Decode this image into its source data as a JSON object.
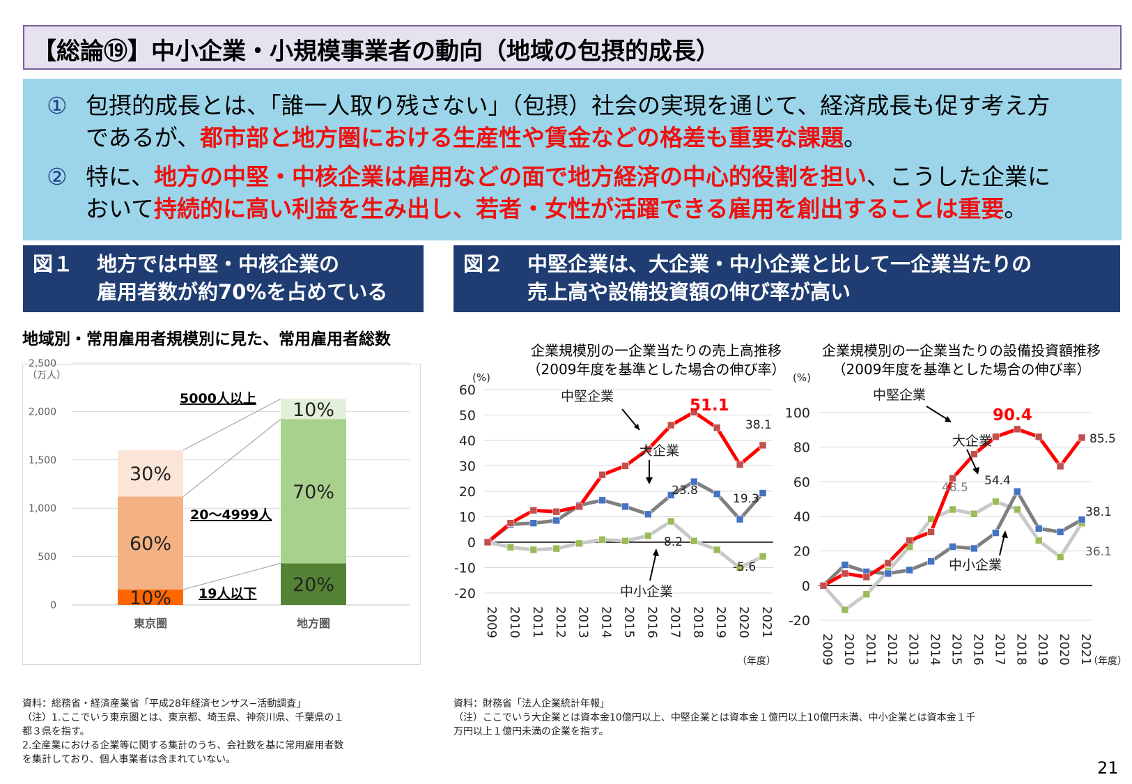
{
  "title": "【総論⑲】中小企業・小規模事業者の動向（地域の包摂的成長）",
  "summary": {
    "p1": {
      "num": "①",
      "a": "包摂的成長とは、「誰一人取り残さない」（包摂）社会の実現を通じて、経済成長も促す考え方",
      "b": "であるが、",
      "red": "都市部と地方圏における生産性や賃金などの格差も重要な課題",
      "c": "。"
    },
    "p2": {
      "num": "②",
      "a": "特に、",
      "red1": "地方の中堅・中核企業は雇用などの面で地方経済の中心的役割を担い",
      "b": "、こうした企業に",
      "c": "おいて",
      "red2": "持続的に高い利益を生み出し、若者・女性が活躍できる雇用を創出することは重要",
      "d": "。"
    }
  },
  "fig1": {
    "label": "図１",
    "line1": "地方では中堅・中核企業の",
    "line2": "雇用者数が約70%を占めている"
  },
  "fig2": {
    "label": "図２",
    "line1": "中堅企業は、大企業・中小企業と比して一企業当たりの",
    "line2": "売上高や設備投資額の伸び率が高い"
  },
  "chart1_title": "地域別・常用雇用者規模別に見た、常用雇用者総数",
  "chart1_unit": "（万人）",
  "chart1_labels": {
    "large": "5000人以上",
    "mid": "20〜4999人",
    "small": "19人以下"
  },
  "chart2a_title1": "企業規模別の一企業当たりの売上高推移",
  "chart2a_title2": "（2009年度を基準とした場合の伸び率）",
  "chart2b_title1": "企業規模別の一企業当たりの設備投資額推移",
  "chart2b_title2": "（2009年度を基準とした場合の伸び率）",
  "percent_unit": "(%)",
  "year_unit": "（年度）",
  "source1": {
    "line1": "資料：総務省・経済産業省「平成28年経済センサス−活動調査」",
    "line2": "（注）1.ここでいう東京圏とは、東京都、埼玉県、神奈川県、千葉県の１",
    "line3": "都３県を指す。",
    "line4": "2.全産業における企業等に関する集計のうち、会社数を基に常用雇用者数",
    "line5": "を集計しており、個人事業者は含まれていない。"
  },
  "source2": {
    "line1": "資料：財務省「法人企業統計年報」",
    "line2": "（注）ここでいう大企業とは資本金10億円以上、中堅企業とは資本金１億円以上10億円未満、中小企業とは資本金１千",
    "line3": "万円以上１億円未満の企業を指す。"
  },
  "page_number": "21",
  "colors": {
    "mid_company": "#ff0000",
    "large_company": "#7f7f7f",
    "small_company": "#c0c0c0"
  },
  "chart_data": [
    {
      "type": "bar",
      "stacked": true,
      "categories": [
        "東京圏",
        "地方圏"
      ],
      "ylim": [
        0,
        2500
      ],
      "yticks": [
        "0",
        "500",
        "1,000",
        "1,500",
        "2,000",
        "2,500"
      ],
      "series": [
        {
          "name": "19人以下",
          "values": [
            160,
            430
          ],
          "labels": [
            "10%",
            "20%"
          ],
          "colors": [
            "#ff6600",
            "#548235"
          ]
        },
        {
          "name": "20〜4999人",
          "values": [
            960,
            1490
          ],
          "labels": [
            "60%",
            "70%"
          ],
          "colors": [
            "#f4b183",
            "#a9d18e"
          ]
        },
        {
          "name": "5000人以上",
          "values": [
            480,
            210
          ],
          "labels": [
            "30%",
            "10%"
          ],
          "colors": [
            "#fbe5d6",
            "#e2f0d9"
          ]
        }
      ]
    },
    {
      "type": "line",
      "x": [
        "2009",
        "2010",
        "2011",
        "2012",
        "2013",
        "2014",
        "2015",
        "2016",
        "2017",
        "2018",
        "2019",
        "2020",
        "2021"
      ],
      "ylim": [
        -20,
        60
      ],
      "yticks": [
        "-20",
        "-10",
        "0",
        "10",
        "20",
        "30",
        "40",
        "50",
        "60"
      ],
      "series": [
        {
          "name": "中堅企業",
          "values": [
            0,
            7.5,
            12.5,
            12,
            14,
            26.5,
            30,
            36.5,
            46,
            51.1,
            45,
            30.5,
            38.1
          ],
          "color": "#ff0000",
          "marker": "#c0504d"
        },
        {
          "name": "大企業",
          "values": [
            0,
            7,
            7.5,
            8.5,
            14.5,
            16.5,
            14,
            11,
            18.5,
            23.8,
            19,
            9,
            19.3
          ],
          "color": "#7f7f7f",
          "marker": "#4472c4"
        },
        {
          "name": "中小企業",
          "values": [
            0,
            -2,
            -3,
            -2.5,
            -0.5,
            1,
            0.5,
            2.5,
            8.2,
            0.5,
            -3,
            -10,
            -5.6
          ],
          "color": "#c8c8c8",
          "marker": "#9bbb59"
        }
      ],
      "annotations": [
        "51.1",
        "38.1",
        "23.8",
        "19.3",
        "8.2",
        "-5.6"
      ]
    },
    {
      "type": "line",
      "x": [
        "2009",
        "2010",
        "2011",
        "2012",
        "2013",
        "2014",
        "2015",
        "2016",
        "2017",
        "2018",
        "2019",
        "2020",
        "2021"
      ],
      "ylim": [
        -20,
        100
      ],
      "yticks": [
        "-20",
        "0",
        "20",
        "40",
        "60",
        "80",
        "100"
      ],
      "series": [
        {
          "name": "中堅企業",
          "values": [
            0,
            7,
            5,
            13,
            26,
            31,
            62,
            76,
            86,
            90.4,
            86,
            69,
            85.5
          ],
          "color": "#ff0000",
          "marker": "#c0504d"
        },
        {
          "name": "大企業",
          "values": [
            0,
            12,
            8,
            7,
            9,
            14,
            22.5,
            21.5,
            30.5,
            54.4,
            33,
            31,
            38.1
          ],
          "color": "#7f7f7f",
          "marker": "#4472c4"
        },
        {
          "name": "中小企業",
          "values": [
            0,
            -14,
            -5,
            8.5,
            22.5,
            38.5,
            44,
            41.5,
            48.5,
            44,
            26,
            16.5,
            36.1
          ],
          "color": "#c8c8c8",
          "marker": "#9bbb59"
        }
      ],
      "annotations": [
        "90.4",
        "85.5",
        "54.4",
        "48.5",
        "38.1",
        "36.1"
      ]
    }
  ]
}
